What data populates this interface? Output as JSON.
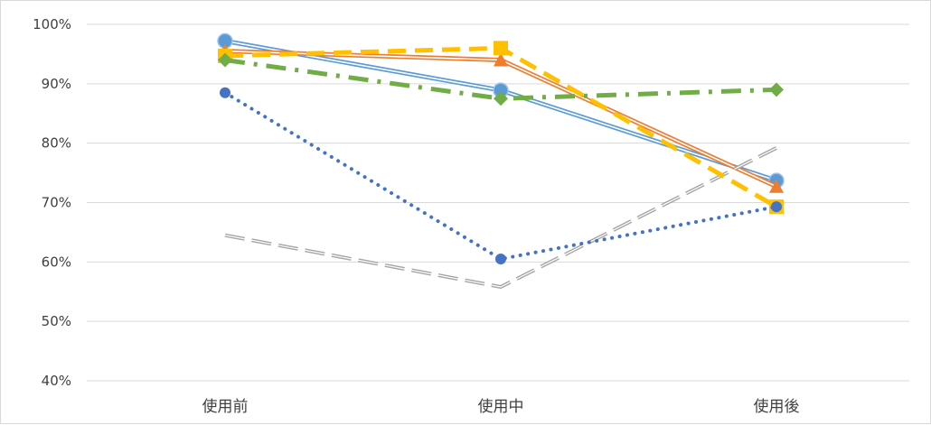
{
  "chart_data": {
    "type": "line",
    "title": "",
    "xlabel": "",
    "ylabel": "",
    "categories": [
      "使用前",
      "使用中",
      "使用後"
    ],
    "y_ticks": [
      "40%",
      "50%",
      "60%",
      "70%",
      "80%",
      "90%",
      "100%"
    ],
    "ylim": [
      0.4,
      1.0
    ],
    "grid": true,
    "legend": "none",
    "series": [
      {
        "values": [
          0.972,
          0.889,
          0.737
        ],
        "color": "#5b9bd5",
        "style": "double-solid",
        "marker": "circle"
      },
      {
        "values": [
          0.955,
          0.94,
          0.727
        ],
        "color": "#ed7d31",
        "style": "double-solid",
        "marker": "triangle"
      },
      {
        "values": [
          0.645,
          0.558,
          0.792
        ],
        "color": "#a5a5a5",
        "style": "long-dash",
        "marker": "none"
      },
      {
        "values": [
          0.947,
          0.96,
          0.693
        ],
        "color": "#ffc000",
        "style": "dash",
        "marker": "square"
      },
      {
        "values": [
          0.885,
          0.605,
          0.693
        ],
        "color": "#4472c4",
        "style": "dot",
        "marker": "circle-small"
      },
      {
        "values": [
          0.94,
          0.875,
          0.89
        ],
        "color": "#70ad47",
        "style": "dash-dot",
        "marker": "diamond"
      }
    ]
  }
}
